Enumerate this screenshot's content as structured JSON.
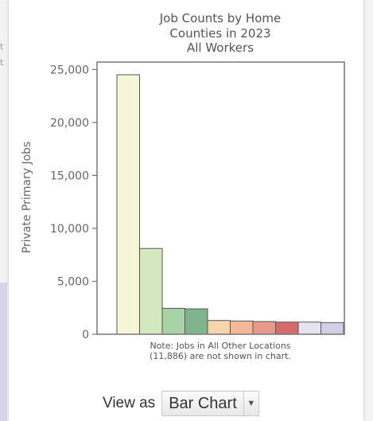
{
  "chart_data": {
    "type": "bar",
    "title_lines": [
      "Job Counts by Home",
      "Counties in 2023",
      "All Workers"
    ],
    "ylabel": "Private Primary Jobs",
    "ylim": [
      0,
      25700
    ],
    "yticks": [
      0,
      5000,
      10000,
      15000,
      20000,
      25000
    ],
    "ytick_labels": [
      "0",
      "5,000",
      "10,000",
      "15,000",
      "20,000",
      "25,000"
    ],
    "values": [
      24500,
      8100,
      2450,
      2400,
      1300,
      1250,
      1200,
      1150,
      1150,
      1100
    ],
    "colors": [
      "#f5f6d8",
      "#d4e8c0",
      "#a7d3a5",
      "#7fb58c",
      "#f6d6ae",
      "#f2b898",
      "#e89a8a",
      "#d56b6b",
      "#e6e4ee",
      "#d3d0e3"
    ],
    "note_lines": [
      "Note: Jobs in All Other Locations",
      "(11,886) are not shown in chart."
    ]
  },
  "controls": {
    "view_as_label": "View as",
    "view_selected": "Bar Chart",
    "dropdown_icon": "triangle-down"
  },
  "left_edge_marks": [
    "t",
    "t"
  ]
}
